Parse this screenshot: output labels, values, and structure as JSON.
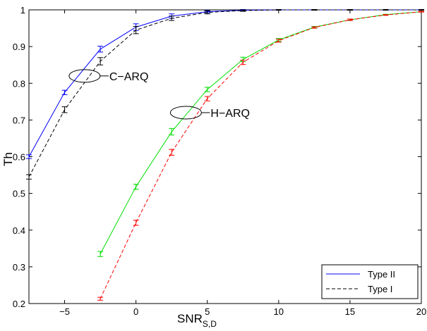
{
  "chart_data": {
    "type": "line",
    "title": "",
    "xlabel": "SNR",
    "xlabel_subscript": "S,D",
    "ylabel": "Th",
    "xlim": [
      -7.5,
      20
    ],
    "ylim": [
      0.2,
      1
    ],
    "xticks": [
      -5,
      0,
      5,
      10,
      15,
      20
    ],
    "yticks": [
      0.2,
      0.3,
      0.4,
      0.5,
      0.6,
      0.7,
      0.8,
      0.9,
      1
    ],
    "ytick_labels": [
      "0.2",
      "0.3",
      "0.4",
      "0.5",
      "0.6",
      "0.7",
      "0.8",
      "0.9",
      "1"
    ],
    "grid": false,
    "legend_position": "bottom-right",
    "legend": [
      {
        "label": "Type II",
        "style": "solid",
        "color": "#0000ff"
      },
      {
        "label": "Type I",
        "style": "dashed",
        "color": "#000000"
      }
    ],
    "annotations": [
      {
        "text": "C−ARQ",
        "x": -3.6,
        "y": 0.82
      },
      {
        "text": "H−ARQ",
        "x": 3.5,
        "y": 0.72
      }
    ],
    "series": [
      {
        "group": "C-ARQ",
        "type_label": "Type II",
        "style": "solid",
        "color": "#0000ff",
        "x": [
          -7.5,
          -5,
          -2.5,
          0,
          2.5,
          5,
          7.5,
          10,
          12.5,
          15,
          17.5,
          20
        ],
        "y": [
          0.6,
          0.775,
          0.893,
          0.953,
          0.983,
          0.995,
          0.999,
          1.0,
          1.0,
          1.0,
          1.0,
          1.0
        ],
        "err": [
          0.005,
          0.006,
          0.008,
          0.009,
          0.006,
          0.003,
          0.002,
          0.001,
          0.001,
          0.001,
          0.001,
          0.001
        ]
      },
      {
        "group": "C-ARQ",
        "type_label": "Type I",
        "style": "dashed",
        "color": "#000000",
        "x": [
          -7.5,
          -5,
          -2.5,
          0,
          2.5,
          5,
          7.5,
          10,
          12.5,
          15,
          17.5,
          20
        ],
        "y": [
          0.545,
          0.728,
          0.86,
          0.945,
          0.977,
          0.993,
          0.998,
          1.0,
          1.0,
          1.0,
          1.0,
          1.0
        ],
        "err": [
          0.006,
          0.008,
          0.01,
          0.01,
          0.006,
          0.004,
          0.002,
          0.001,
          0.001,
          0.001,
          0.001,
          0.001
        ]
      },
      {
        "group": "H-ARQ",
        "type_label": "Type II",
        "style": "solid",
        "color": "#00dd00",
        "x": [
          -2.5,
          0,
          2.5,
          5,
          7.5,
          10,
          12.5,
          15,
          17.5,
          20
        ],
        "y": [
          0.335,
          0.518,
          0.668,
          0.783,
          0.865,
          0.918,
          0.953,
          0.973,
          0.987,
          0.995
        ],
        "err": [
          0.007,
          0.007,
          0.009,
          0.006,
          0.006,
          0.004,
          0.002,
          0.002,
          0.001,
          0.001
        ]
      },
      {
        "group": "H-ARQ",
        "type_label": "Type I",
        "style": "dashed",
        "color": "#ff0000",
        "x": [
          -2.5,
          0,
          2.5,
          5,
          7.5,
          10,
          12.5,
          15,
          17.5,
          20
        ],
        "y": [
          0.213,
          0.42,
          0.612,
          0.758,
          0.857,
          0.916,
          0.952,
          0.973,
          0.986,
          0.995
        ],
        "err": [
          0.004,
          0.007,
          0.008,
          0.006,
          0.006,
          0.004,
          0.002,
          0.002,
          0.001,
          0.001
        ]
      }
    ]
  }
}
